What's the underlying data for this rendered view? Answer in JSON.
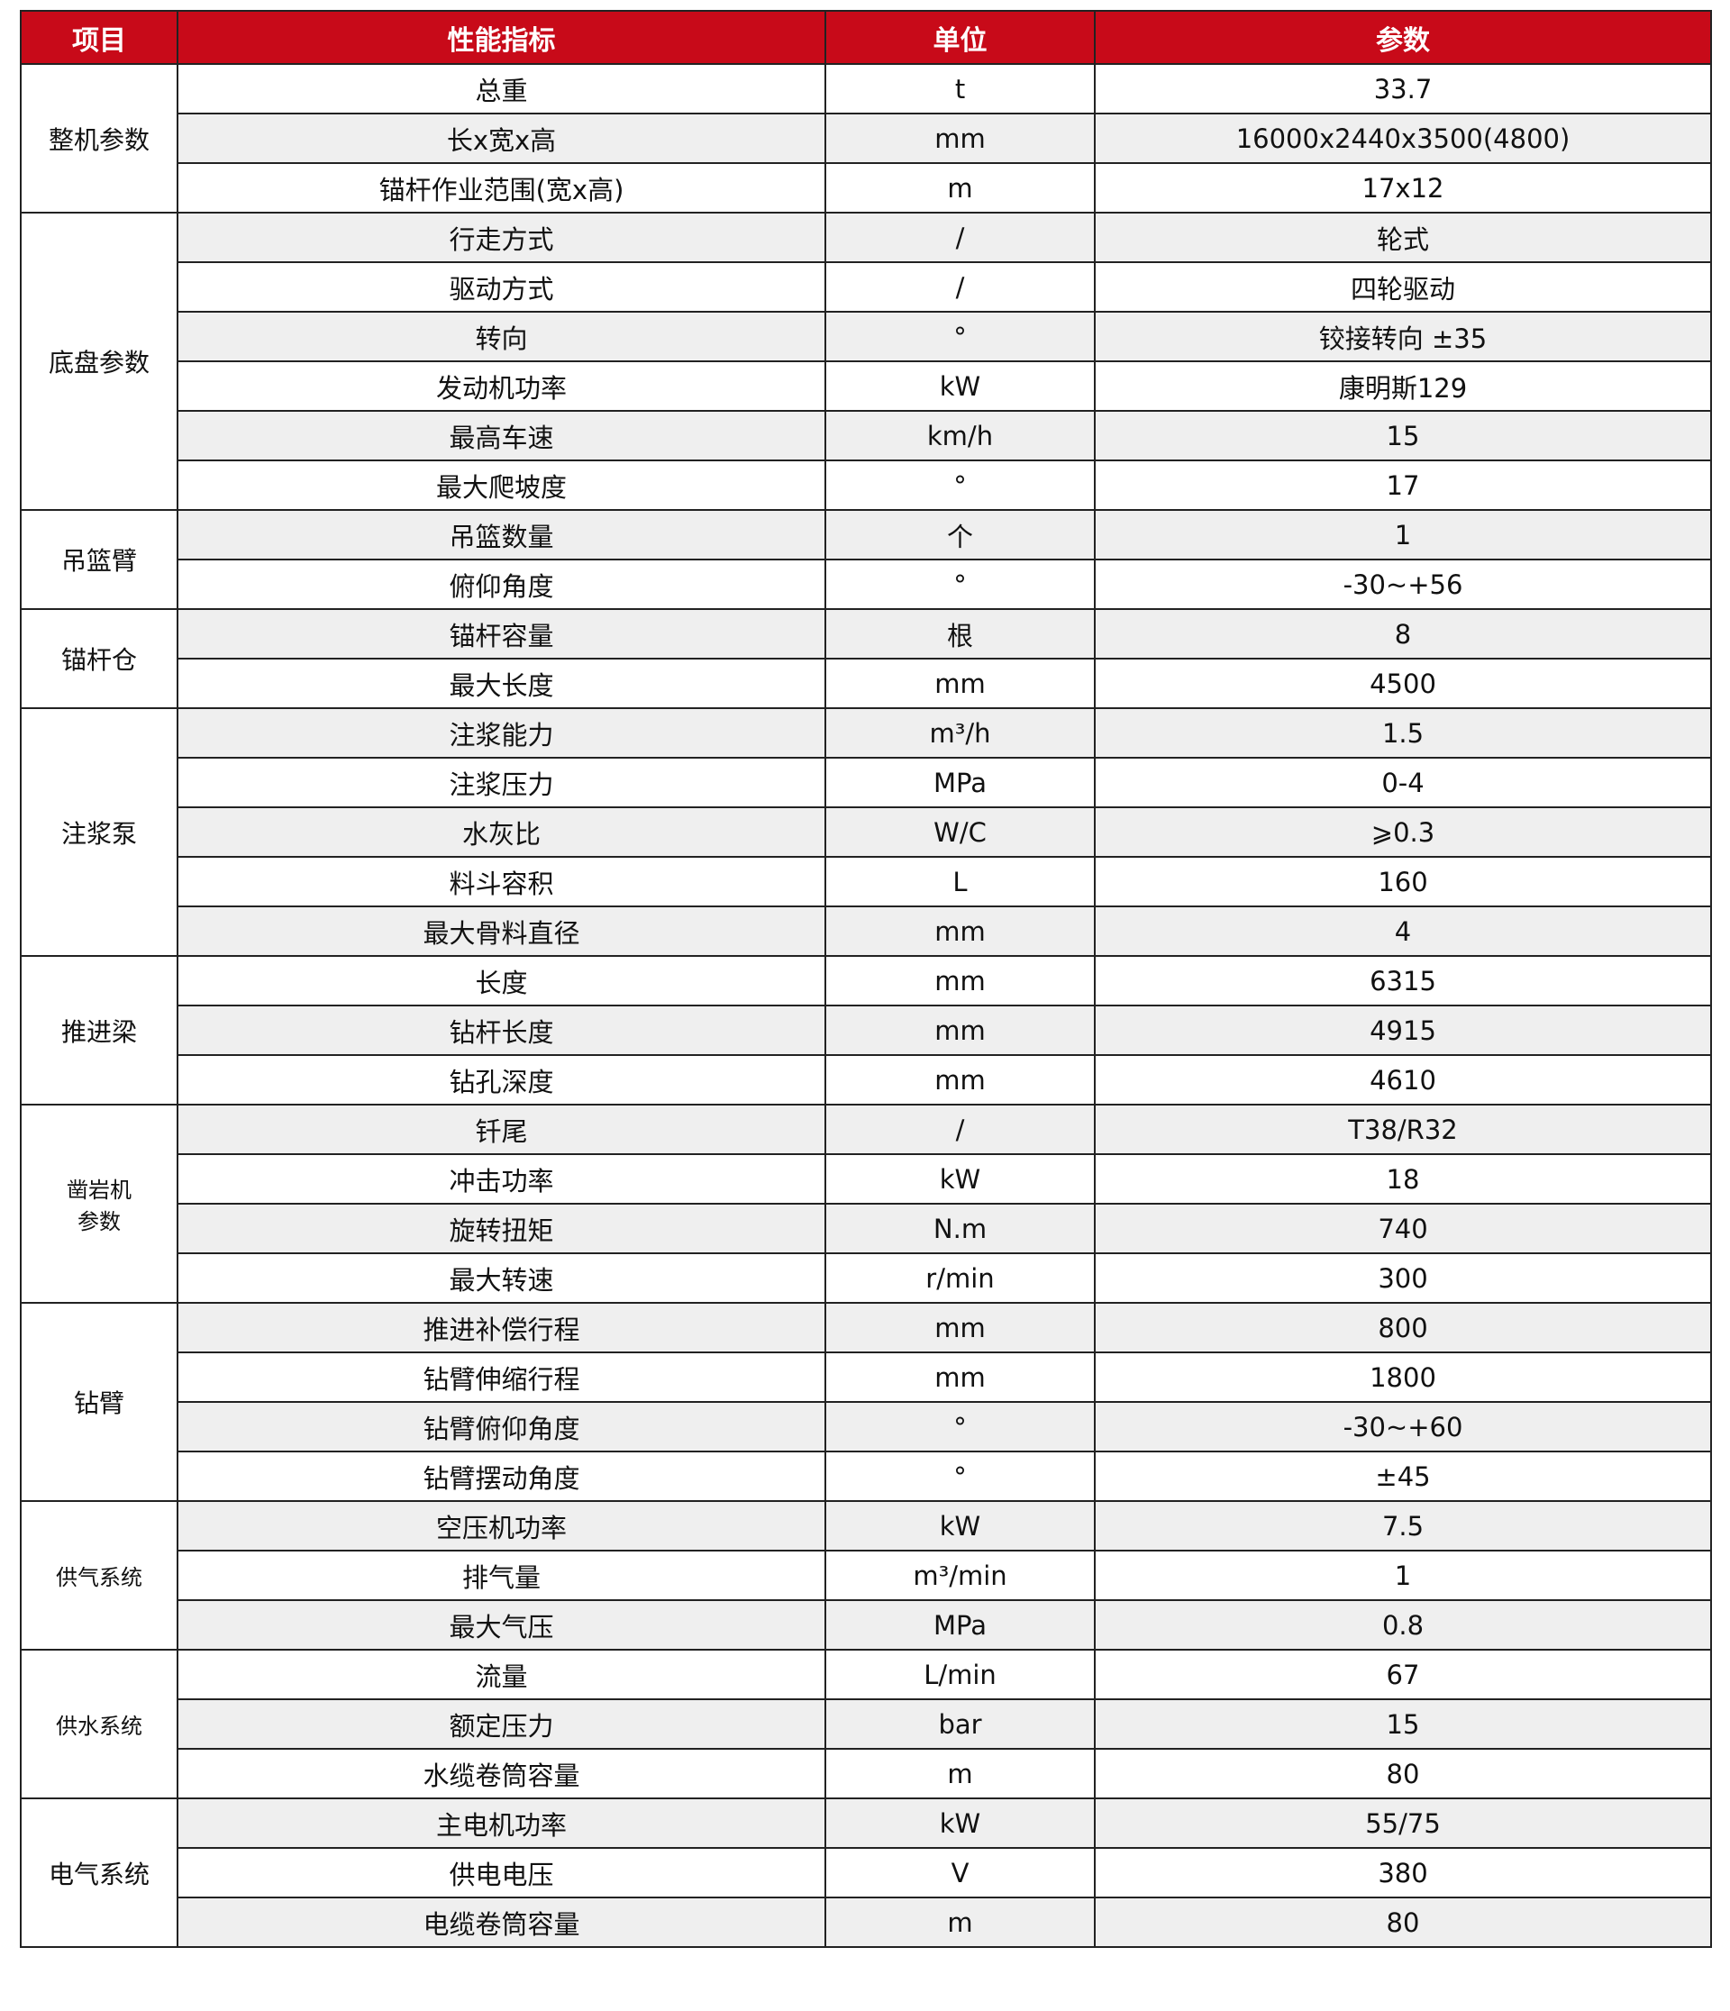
{
  "header": {
    "item": "项目",
    "indicator": "性能指标",
    "unit": "单位",
    "value": "参数"
  },
  "colors": {
    "header_bg": "#c80a19",
    "stripe": "#efefef"
  },
  "groups": [
    {
      "name": "整机参数",
      "rows": [
        {
          "indicator": "总重",
          "unit": "t",
          "value": "33.7"
        },
        {
          "indicator": "长x宽x高",
          "unit": "mm",
          "value": "16000x2440x3500(4800)"
        },
        {
          "indicator": "锚杆作业范围(宽x高)",
          "unit": "m",
          "value": "17x12"
        }
      ]
    },
    {
      "name": "底盘参数",
      "rows": [
        {
          "indicator": "行走方式",
          "unit": "/",
          "value": "轮式"
        },
        {
          "indicator": "驱动方式",
          "unit": "/",
          "value": "四轮驱动"
        },
        {
          "indicator": "转向",
          "unit": "°",
          "value": "铰接转向  ±35"
        },
        {
          "indicator": "发动机功率",
          "unit": "kW",
          "value": "康明斯129"
        },
        {
          "indicator": "最高车速",
          "unit": "km/h",
          "value": "15"
        },
        {
          "indicator": "最大爬坡度",
          "unit": "°",
          "value": "17"
        }
      ]
    },
    {
      "name": "吊篮臂",
      "rows": [
        {
          "indicator": "吊篮数量",
          "unit": "个",
          "value": "1"
        },
        {
          "indicator": "俯仰角度",
          "unit": "°",
          "value": "-30~+56"
        }
      ]
    },
    {
      "name": "锚杆仓",
      "rows": [
        {
          "indicator": "锚杆容量",
          "unit": "根",
          "value": "8"
        },
        {
          "indicator": "最大长度",
          "unit": "mm",
          "value": "4500"
        }
      ]
    },
    {
      "name": "注浆泵",
      "rows": [
        {
          "indicator": "注浆能力",
          "unit": "m³/h",
          "value": "1.5"
        },
        {
          "indicator": "注浆压力",
          "unit": "MPa",
          "value": "0-4"
        },
        {
          "indicator": "水灰比",
          "unit": "W/C",
          "value": "⩾0.3"
        },
        {
          "indicator": "料斗容积",
          "unit": "L",
          "value": "160"
        },
        {
          "indicator": "最大骨料直径",
          "unit": "mm",
          "value": "4"
        }
      ]
    },
    {
      "name": "推进梁",
      "rows": [
        {
          "indicator": "长度",
          "unit": "mm",
          "value": "6315"
        },
        {
          "indicator": "钻杆长度",
          "unit": "mm",
          "value": "4915"
        },
        {
          "indicator": "钻孔深度",
          "unit": "mm",
          "value": "4610"
        }
      ]
    },
    {
      "name": "凿岩机\n参数",
      "small": true,
      "rows": [
        {
          "indicator": "钎尾",
          "unit": "/",
          "value": "T38/R32"
        },
        {
          "indicator": "冲击功率",
          "unit": "kW",
          "value": "18"
        },
        {
          "indicator": "旋转扭矩",
          "unit": "N.m",
          "value": "740"
        },
        {
          "indicator": "最大转速",
          "unit": "r/min",
          "value": "300"
        }
      ]
    },
    {
      "name": "钻臂",
      "rows": [
        {
          "indicator": "推进补偿行程",
          "unit": "mm",
          "value": "800"
        },
        {
          "indicator": "钻臂伸缩行程",
          "unit": "mm",
          "value": "1800"
        },
        {
          "indicator": "钻臂俯仰角度",
          "unit": "°",
          "value": "-30~+60"
        },
        {
          "indicator": "钻臂摆动角度",
          "unit": "°",
          "value": "±45"
        }
      ]
    },
    {
      "name": "供气系统",
      "small": true,
      "rows": [
        {
          "indicator": "空压机功率",
          "unit": "kW",
          "value": "7.5"
        },
        {
          "indicator": "排气量",
          "unit": "m³/min",
          "value": "1"
        },
        {
          "indicator": "最大气压",
          "unit": "MPa",
          "value": "0.8"
        }
      ]
    },
    {
      "name": "供水系统",
      "small": true,
      "rows": [
        {
          "indicator": "流量",
          "unit": "L/min",
          "value": "67"
        },
        {
          "indicator": "额定压力",
          "unit": "bar",
          "value": "15"
        },
        {
          "indicator": "水缆卷筒容量",
          "unit": "m",
          "value": "80"
        }
      ]
    },
    {
      "name": "电气系统",
      "rows": [
        {
          "indicator": "主电机功率",
          "unit": "kW",
          "value": "55/75"
        },
        {
          "indicator": "供电电压",
          "unit": "V",
          "value": "380"
        },
        {
          "indicator": "电缆卷筒容量",
          "unit": "m",
          "value": "80"
        }
      ]
    }
  ]
}
